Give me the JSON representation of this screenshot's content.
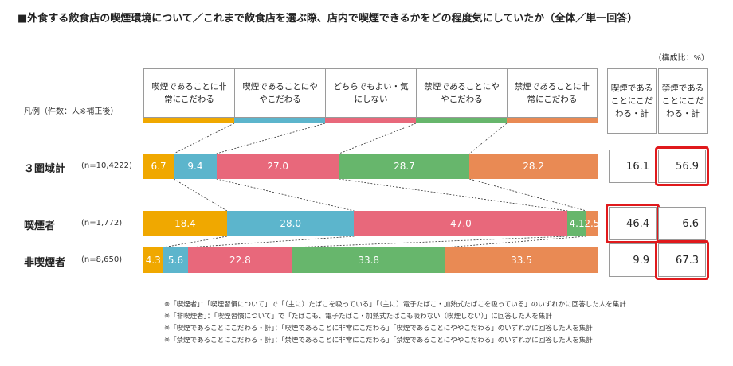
{
  "title": "■外食する飲食店の喫煙環境について／これまで飲食店を選ぶ際、店内で喫煙できるかをどの程度気にしていたか（全体／単一回答）",
  "unit_label": "（構成比：%）",
  "legend_label": "凡例（件数：人※補正後）",
  "colors": [
    "#f0a800",
    "#5cb5cc",
    "#e8687b",
    "#67b66c",
    "#e98a54"
  ],
  "summary_headers": [
    "喫煙であることにこだわる・計",
    "禁煙であることにこだわる・計"
  ],
  "chart_data": {
    "type": "bar",
    "orientation": "horizontal-stacked-100",
    "title": "■外食する飲食店の喫煙環境について／これまで飲食店を選ぶ際、店内で喫煙できるかをどの程度気にしていたか（全体／単一回答）",
    "categories": [
      "喫煙であることに非常にこだわる",
      "喫煙であることにややこだわる",
      "どちらでもよい・気にしない",
      "禁煙であることにややこだわる",
      "禁煙であることに非常にこだわる"
    ],
    "rows": [
      {
        "label": "３圏域計",
        "n": "(n=10,4222)",
        "values": [
          6.7,
          9.4,
          27.0,
          28.7,
          28.2
        ],
        "labels": [
          "6.7",
          "9.4",
          "27.0",
          "28.7",
          "28.2"
        ],
        "smoke_total": "16.1",
        "nosmoke_total": "56.9",
        "highlight": "nosmoke"
      },
      {
        "label": "喫煙者",
        "n": "(n=1,772)",
        "values": [
          18.4,
          28.0,
          47.0,
          4.1,
          2.5
        ],
        "labels": [
          "18.4",
          "28.0",
          "47.0",
          "4.1",
          "2.5"
        ],
        "smoke_total": "46.4",
        "nosmoke_total": "6.6",
        "highlight": "smoke"
      },
      {
        "label": "非喫煙者",
        "n": "(n=8,650)",
        "values": [
          4.3,
          5.6,
          22.8,
          33.8,
          33.5
        ],
        "labels": [
          "4.3",
          "5.6",
          "22.8",
          "33.8",
          "33.5"
        ],
        "smoke_total": "9.9",
        "nosmoke_total": "67.3",
        "highlight": "nosmoke"
      }
    ]
  },
  "notes": [
    "※「喫煙者」：「喫煙習慣について」で「（主に）たばこを吸っている」「（主に）電子たばこ・加熱式たばこを吸っている」のいずれかに回答した人を集計",
    "※「非喫煙者」：「喫煙習慣について」で「たばこも、電子たばこ・加熱式たばこも吸わない（喫煙しない）」に回答した人を集計",
    "※「喫煙であることにこだわる・計」：「喫煙であることに非常にこだわる」「喫煙であることにややこだわる」のいずれかに回答した人を集計",
    "※「禁煙であることにこだわる・計」：「禁煙であることに非常にこだわる」「禁煙であることにややこだわる」のいずれかに回答した人を集計"
  ]
}
